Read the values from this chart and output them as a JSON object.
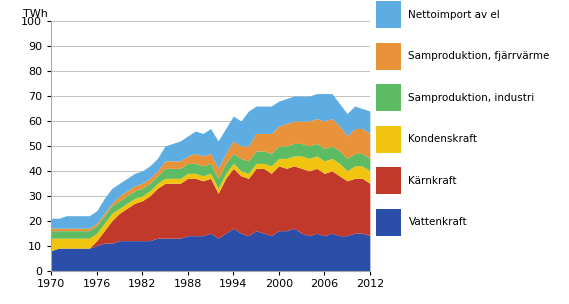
{
  "years": [
    1970,
    1971,
    1972,
    1973,
    1974,
    1975,
    1976,
    1977,
    1978,
    1979,
    1980,
    1981,
    1982,
    1983,
    1984,
    1985,
    1986,
    1987,
    1988,
    1989,
    1990,
    1991,
    1992,
    1993,
    1994,
    1995,
    1996,
    1997,
    1998,
    1999,
    2000,
    2001,
    2002,
    2003,
    2004,
    2005,
    2006,
    2007,
    2008,
    2009,
    2010,
    2011,
    2012
  ],
  "vattenkraft": [
    8,
    9,
    9,
    9,
    9,
    9,
    10,
    11,
    11,
    12,
    12,
    12,
    12,
    12,
    13,
    13,
    13,
    13,
    14,
    14,
    14,
    15,
    13,
    15,
    17,
    15,
    14,
    16,
    15,
    14,
    16,
    16,
    17,
    15,
    14,
    15,
    14,
    15,
    14,
    14,
    15,
    15,
    14
  ],
  "karnkraft": [
    0,
    0,
    0,
    0,
    0,
    0,
    2,
    5,
    9,
    11,
    13,
    15,
    16,
    18,
    20,
    22,
    22,
    22,
    23,
    23,
    22,
    22,
    18,
    22,
    24,
    23,
    23,
    25,
    26,
    25,
    26,
    25,
    25,
    26,
    26,
    26,
    25,
    25,
    24,
    22,
    22,
    22,
    21
  ],
  "kondenskraft": [
    5,
    4,
    4,
    4,
    4,
    4,
    3,
    3,
    3,
    2,
    2,
    2,
    2,
    2,
    2,
    2,
    2,
    2,
    2,
    2,
    2,
    2,
    2,
    2,
    2,
    2,
    2,
    2,
    2,
    3,
    3,
    4,
    4,
    5,
    5,
    5,
    5,
    5,
    5,
    4,
    5,
    5,
    5
  ],
  "samproduktion_industri": [
    3,
    3,
    3,
    3,
    3,
    3,
    3,
    3,
    3,
    3,
    3,
    3,
    3,
    3,
    3,
    4,
    4,
    4,
    4,
    4,
    4,
    4,
    4,
    4,
    4,
    5,
    5,
    5,
    5,
    5,
    5,
    5,
    5,
    5,
    5,
    5,
    5,
    5,
    5,
    5,
    5,
    5,
    5
  ],
  "samproduktion_fjarrvarme": [
    1,
    1,
    1,
    1,
    1,
    1,
    1,
    1,
    1,
    2,
    2,
    2,
    2,
    2,
    2,
    3,
    3,
    3,
    3,
    4,
    4,
    4,
    4,
    4,
    5,
    5,
    6,
    7,
    7,
    8,
    8,
    9,
    9,
    9,
    10,
    10,
    11,
    11,
    10,
    9,
    10,
    10,
    10
  ],
  "nettoimport": [
    4,
    4,
    5,
    5,
    5,
    5,
    5,
    6,
    6,
    5,
    5,
    5,
    5,
    5,
    5,
    6,
    7,
    8,
    8,
    9,
    9,
    10,
    11,
    10,
    10,
    10,
    14,
    11,
    11,
    11,
    10,
    10,
    10,
    10,
    10,
    10,
    11,
    10,
    9,
    9,
    9,
    8,
    9
  ],
  "colors": {
    "vattenkraft": "#2B4EA8",
    "karnkraft": "#C0392B",
    "kondenskraft": "#F1C40F",
    "samproduktion_industri": "#5DBB63",
    "samproduktion_fjarrvarme": "#E8923A",
    "nettoimport": "#5DADE2"
  },
  "labels": {
    "vattenkraft": "Vattenkraft",
    "karnkraft": "Kärnkraft",
    "kondenskraft": "Kondenskraft",
    "samproduktion_industri": "Samproduktion, industri",
    "samproduktion_fjarrvarme": "Samproduktion, fjärrvärme",
    "nettoimport": "Nettoimport av el"
  },
  "ylabel": "TWh",
  "ylim": [
    0,
    100
  ],
  "yticks": [
    0,
    10,
    20,
    30,
    40,
    50,
    60,
    70,
    80,
    90,
    100
  ],
  "xticks": [
    1970,
    1976,
    1982,
    1988,
    1994,
    2000,
    2006,
    2012
  ],
  "background_color": "#FFFFFF",
  "figsize": [
    5.69,
    3.04
  ],
  "dpi": 100
}
